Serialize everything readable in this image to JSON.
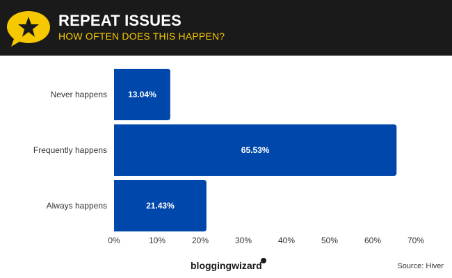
{
  "header": {
    "title": "REPEAT ISSUES",
    "subtitle": "HOW OFTEN DOES THIS HAPPEN?",
    "icon": "star-speech-bubble-icon"
  },
  "colors": {
    "header_bg": "#1a1a1a",
    "accent": "#f5c800",
    "bar": "#0047ab",
    "bar_label": "#ffffff"
  },
  "chart_data": {
    "type": "bar",
    "orientation": "horizontal",
    "title": "REPEAT ISSUES",
    "subtitle": "HOW OFTEN DOES THIS HAPPEN?",
    "categories": [
      "Never happens",
      "Frequently happens",
      "Always happens"
    ],
    "values": [
      13.04,
      65.53,
      21.43
    ],
    "value_labels": [
      "13.04%",
      "65.53%",
      "21.43%"
    ],
    "xlim": [
      0,
      70
    ],
    "x_ticks": [
      "0%",
      "10%",
      "20%",
      "30%",
      "40%",
      "50%",
      "60%",
      "70%"
    ],
    "x_tick_values": [
      0,
      10,
      20,
      30,
      40,
      50,
      60,
      70
    ],
    "xlabel": "",
    "ylabel": "",
    "grid": false,
    "legend": "none"
  },
  "footer": {
    "brand": "bloggingwizard",
    "source": "Source: Hiver"
  }
}
